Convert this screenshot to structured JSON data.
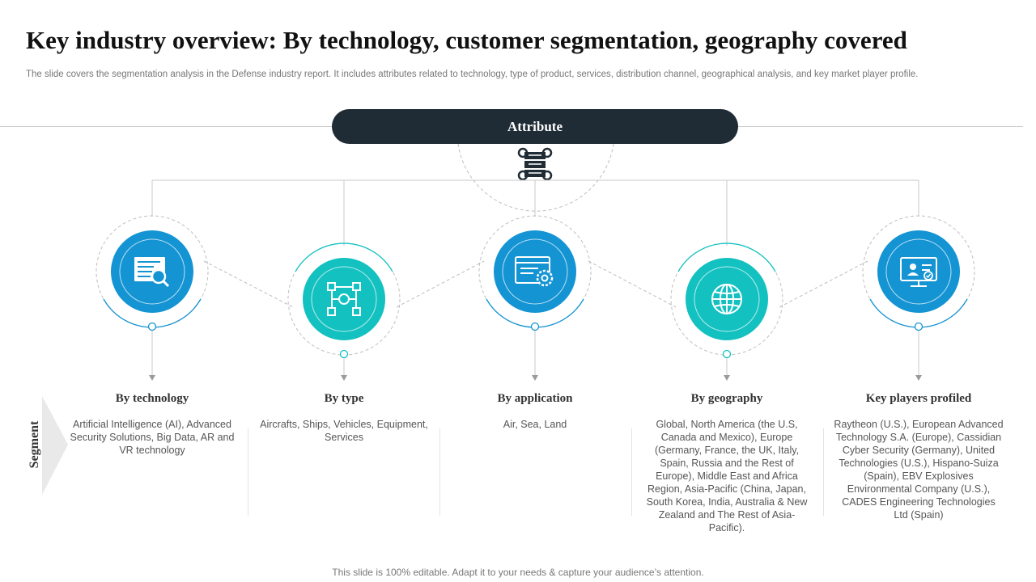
{
  "title": "Key industry overview: By technology, customer segmentation, geography covered",
  "subtitle": "The slide covers the segmentation analysis in the Defense industry report. It includes attributes related to technology, type of product, services, distribution channel, geographical analysis, and key market player profile.",
  "attribute_label": "Attribute",
  "segment_label": "Segment",
  "colors": {
    "dark": "#1f2b35",
    "blue": "#1594d3",
    "teal": "#13c1c0",
    "line": "#c8c8c8"
  },
  "segments": [
    {
      "title": "By technology",
      "icon": "report-search-icon",
      "color": "blue",
      "text": "Artificial Intelligence (AI), Advanced Security Solutions, Big Data, AR and VR technology"
    },
    {
      "title": "By type",
      "icon": "workflow-gear-icon",
      "color": "teal",
      "text": "Aircrafts, Ships, Vehicles, Equipment, Services"
    },
    {
      "title": "By application",
      "icon": "browser-gear-icon",
      "color": "blue",
      "text": "Air, Sea, Land"
    },
    {
      "title": "By geography",
      "icon": "globe-icon",
      "color": "teal",
      "text": "Global, North America (the U.S, Canada and Mexico), Europe (Germany, France, the UK, Italy, Spain, Russia and the Rest of Europe), Middle East and Africa Region, Asia-Pacific (China, Japan, South Korea, India, Australia & New Zealand and The Rest of Asia-Pacific)."
    },
    {
      "title": "Key players profiled",
      "icon": "monitor-user-icon",
      "color": "blue",
      "text": "Raytheon (U.S.), European Advanced Technology S.A. (Europe), Cassidian Cyber Security (Germany), United Technologies (U.S.), Hispano-Suiza (Spain), EBV Explosives Environmental Company (U.S.), CADES Engineering Technologies Ltd (Spain)"
    }
  ],
  "footer": "This slide is 100% editable. Adapt it to your needs & capture your audience’s attention."
}
